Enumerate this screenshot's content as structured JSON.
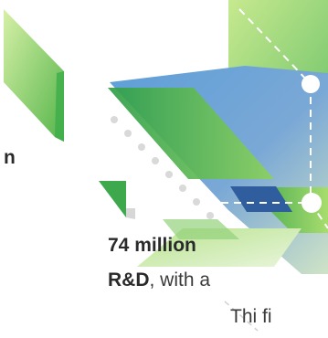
{
  "fragments": {
    "line1": "n",
    "line2_bold": "74 million",
    "line3_bold": "R&D",
    "line3_rest": ", with a",
    "line4": "Thi  fi"
  },
  "colors": {
    "green_dark": "#2e9e48",
    "green_light": "#9fd46e",
    "blue": "#5f8fcf",
    "teal": "#4aa9b0"
  }
}
